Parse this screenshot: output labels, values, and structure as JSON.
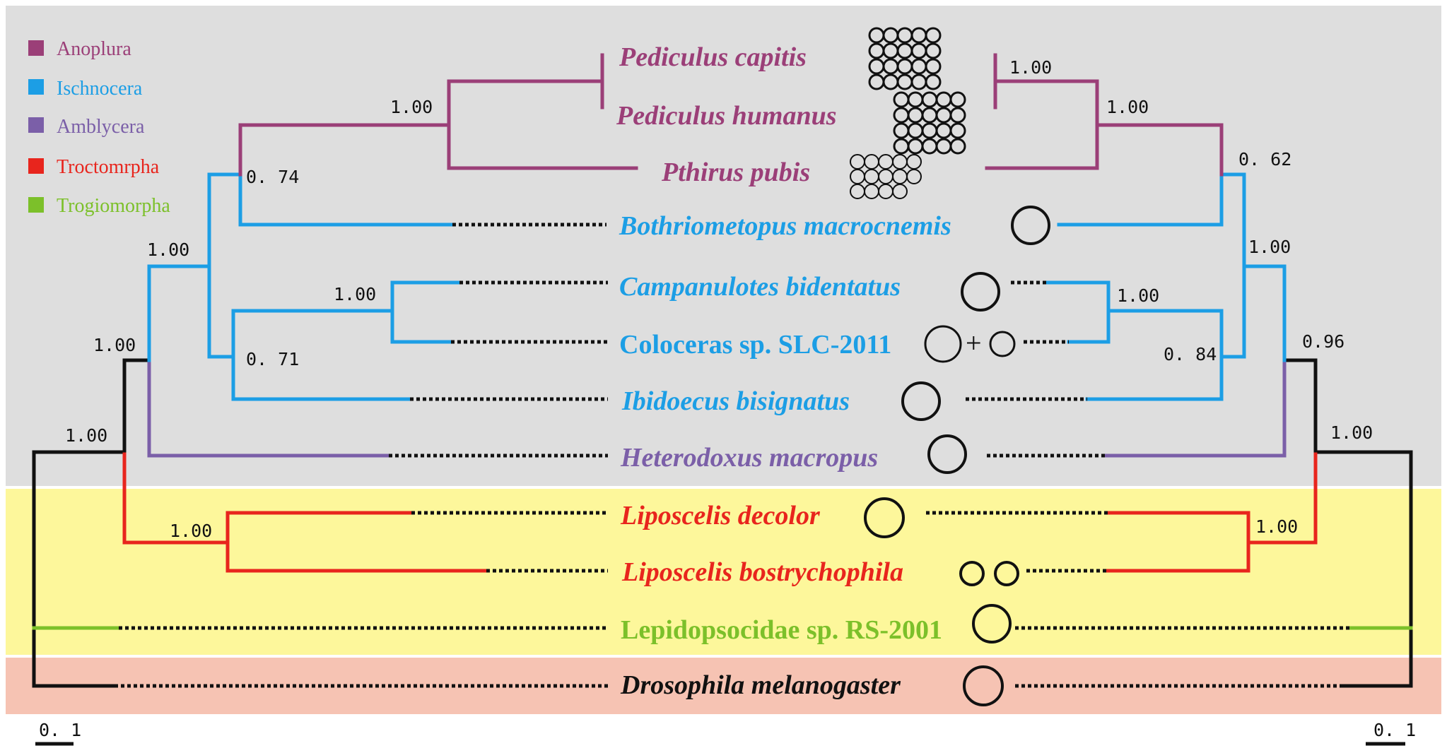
{
  "colors": {
    "Anoplura": "#9b3f78",
    "Ischnocera": "#1c9ee5",
    "Amblycera": "#7b5fa8",
    "Troctomrpha": "#e8251d",
    "Trogiomorpha": "#7cc02a",
    "Outgroup": "#111111",
    "band_gray": "#dedede",
    "band_yellow": "#fdf79b",
    "band_pink": "#f6c3b3"
  },
  "legend": [
    {
      "label": "Anoplura",
      "color": "#9b3f78"
    },
    {
      "label": "Ischnocera",
      "color": "#1c9ee5"
    },
    {
      "label": "Amblycera",
      "color": "#7b5fa8"
    },
    {
      "label": "Troctomrpha",
      "color": "#e8251d"
    },
    {
      "label": "Trogiomorpha",
      "color": "#7cc02a"
    }
  ],
  "taxa": [
    {
      "name": "Pediculus capitis",
      "italic": true,
      "group": "Anoplura"
    },
    {
      "name": "Pediculus humanus",
      "italic": true,
      "group": "Anoplura"
    },
    {
      "name": "Pthirus pubis",
      "italic": true,
      "group": "Anoplura"
    },
    {
      "name": "Bothriometopus macrocnemis",
      "italic": true,
      "group": "Ischnocera"
    },
    {
      "name": "Campanulotes bidentatus",
      "italic": true,
      "group": "Ischnocera"
    },
    {
      "name": "Coloceras sp. SLC-2011",
      "italic": false,
      "group": "Ischnocera"
    },
    {
      "name": "Ibidoecus bisignatus",
      "italic": true,
      "group": "Ischnocera"
    },
    {
      "name": "Heterodoxus macropus",
      "italic": true,
      "group": "Amblycera"
    },
    {
      "name": "Liposcelis decolor",
      "italic": true,
      "group": "Troctomrpha"
    },
    {
      "name": "Liposcelis bostrychophila",
      "italic": true,
      "group": "Troctomrpha"
    },
    {
      "name": "Lepidopsocidae sp. RS-2001",
      "italic": false,
      "group": "Trogiomorpha"
    },
    {
      "name": "Drosophila melanogaster",
      "italic": true,
      "group": "Outgroup"
    }
  ],
  "left_tree_support": [
    "1.00",
    "0. 74",
    "1.00",
    "1.00",
    "0. 71",
    "1.00",
    "1.00",
    "1.00"
  ],
  "right_tree_support": [
    "1.00",
    "1.00",
    "0. 62",
    "1.00",
    "1.00",
    "0. 84",
    "0.96",
    "1.00",
    "1.00"
  ],
  "scale_bars": {
    "left": "0. 1",
    "right": "0. 1"
  },
  "plus_sign": "+"
}
